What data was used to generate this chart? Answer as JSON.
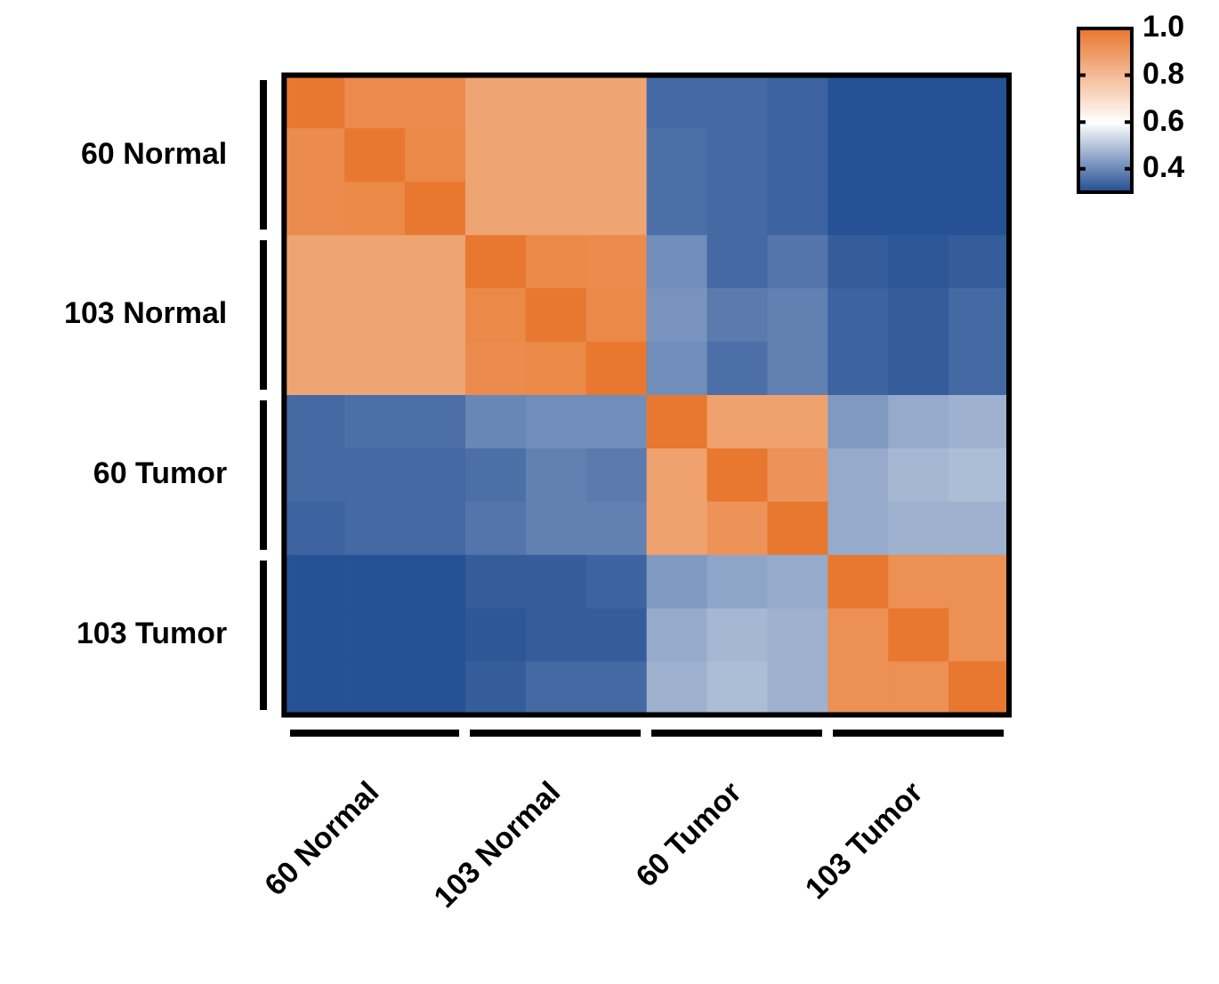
{
  "chart_data": {
    "type": "heatmap",
    "categories": [
      null,
      "60 Normal",
      null,
      null,
      "103 Normal",
      null,
      null,
      "60 Tumor",
      null,
      null,
      "103 Tumor",
      null
    ],
    "y_categories": [
      null,
      "60 Normal",
      null,
      null,
      "103 Normal",
      null,
      null,
      "60 Tumor",
      null,
      null,
      "103 Tumor",
      null
    ],
    "cells": [
      [
        1.0,
        0.94,
        0.94,
        0.87,
        0.87,
        0.87,
        0.35,
        0.35,
        0.34,
        0.31,
        0.31,
        0.31
      ],
      [
        0.94,
        1.0,
        0.95,
        0.87,
        0.87,
        0.87,
        0.36,
        0.35,
        0.34,
        0.31,
        0.31,
        0.31
      ],
      [
        0.94,
        0.95,
        1.0,
        0.87,
        0.87,
        0.87,
        0.36,
        0.35,
        0.34,
        0.31,
        0.31,
        0.31
      ],
      [
        0.87,
        0.87,
        0.87,
        1.0,
        0.95,
        0.94,
        0.41,
        0.35,
        0.37,
        0.33,
        0.32,
        0.33
      ],
      [
        0.87,
        0.87,
        0.87,
        0.95,
        1.0,
        0.95,
        0.42,
        0.38,
        0.39,
        0.34,
        0.33,
        0.35
      ],
      [
        0.87,
        0.87,
        0.87,
        0.94,
        0.95,
        1.0,
        0.41,
        0.36,
        0.39,
        0.34,
        0.33,
        0.35
      ],
      [
        0.35,
        0.36,
        0.36,
        0.4,
        0.41,
        0.41,
        1.0,
        0.88,
        0.88,
        0.43,
        0.46,
        0.47
      ],
      [
        0.35,
        0.35,
        0.35,
        0.36,
        0.39,
        0.38,
        0.88,
        1.0,
        0.92,
        0.46,
        0.48,
        0.49
      ],
      [
        0.34,
        0.35,
        0.35,
        0.37,
        0.39,
        0.39,
        0.88,
        0.92,
        1.0,
        0.46,
        0.47,
        0.47
      ],
      [
        0.31,
        0.31,
        0.31,
        0.33,
        0.33,
        0.34,
        0.43,
        0.45,
        0.46,
        1.0,
        0.93,
        0.93
      ],
      [
        0.31,
        0.31,
        0.31,
        0.32,
        0.33,
        0.33,
        0.46,
        0.48,
        0.47,
        0.93,
        1.0,
        0.93
      ],
      [
        0.31,
        0.31,
        0.31,
        0.33,
        0.35,
        0.35,
        0.47,
        0.49,
        0.47,
        0.93,
        0.93,
        1.0
      ]
    ],
    "clim": [
      0.3,
      1.0
    ],
    "cticks": [
      {
        "value": 0.4,
        "label": "0.4"
      },
      {
        "value": 0.6,
        "label": "0.6"
      },
      {
        "value": 0.8,
        "label": "0.8"
      },
      {
        "value": 1.0,
        "label": "1.0"
      }
    ]
  }
}
